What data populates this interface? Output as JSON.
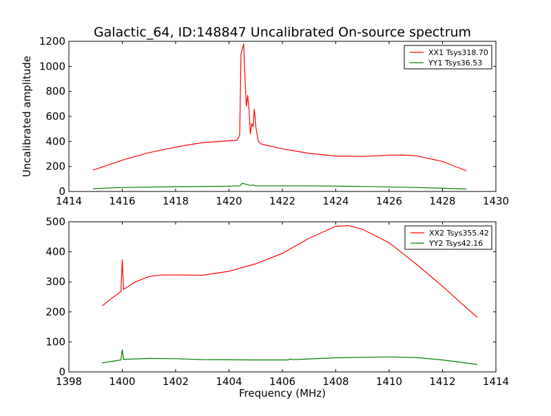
{
  "chart_data": [
    {
      "type": "line",
      "title": "Galactic_64, ID:148847 Uncalibrated On-source spectrum",
      "xlabel": "",
      "ylabel": "Uncalibrated amplitude",
      "xlim": [
        1414,
        1430
      ],
      "ylim": [
        0,
        1200
      ],
      "xticks": [
        1414,
        1416,
        1418,
        1420,
        1422,
        1424,
        1426,
        1428,
        1430
      ],
      "yticks": [
        0,
        200,
        400,
        600,
        800,
        1000,
        1200
      ],
      "legend_position": "top-right",
      "grid": false,
      "series": [
        {
          "name": "XX1 Tsys318.70",
          "color": "#ff0000",
          "x": [
            1414.9,
            1416,
            1417,
            1418,
            1419,
            1420,
            1420.3,
            1420.4,
            1420.45,
            1420.5,
            1420.55,
            1420.6,
            1420.65,
            1420.7,
            1420.75,
            1420.8,
            1420.85,
            1420.9,
            1420.95,
            1421.0,
            1421.1,
            1421.2,
            1422,
            1423,
            1424,
            1425,
            1426,
            1426.5,
            1427,
            1428,
            1428.9
          ],
          "y": [
            170,
            250,
            310,
            355,
            390,
            405,
            410,
            450,
            1100,
            1140,
            1180,
            900,
            680,
            770,
            650,
            460,
            540,
            520,
            660,
            520,
            400,
            380,
            340,
            305,
            283,
            280,
            290,
            292,
            285,
            240,
            165
          ]
        },
        {
          "name": "YY1 Tsys36.53",
          "color": "#008000",
          "x": [
            1414.9,
            1416,
            1418,
            1420,
            1420.4,
            1420.5,
            1420.6,
            1420.8,
            1420.9,
            1421,
            1423,
            1425,
            1427,
            1428.9
          ],
          "y": [
            22,
            32,
            38,
            42,
            45,
            65,
            60,
            48,
            52,
            45,
            45,
            40,
            32,
            20
          ]
        }
      ]
    },
    {
      "type": "line",
      "title": "",
      "xlabel": "Frequency (MHz)",
      "ylabel": "",
      "xlim": [
        1398,
        1414
      ],
      "ylim": [
        0,
        500
      ],
      "xticks": [
        1398,
        1400,
        1402,
        1404,
        1406,
        1408,
        1410,
        1412,
        1414
      ],
      "yticks": [
        0,
        100,
        200,
        300,
        400,
        500
      ],
      "legend_position": "top-right",
      "grid": false,
      "series": [
        {
          "name": "XX2 Tsys355.42",
          "color": "#ff0000",
          "x": [
            1399.25,
            1399.6,
            1399.95,
            1400.0,
            1400.05,
            1400.5,
            1401,
            1401.5,
            1402,
            1403,
            1404,
            1405,
            1406,
            1407,
            1408,
            1408.5,
            1409,
            1410,
            1411,
            1412,
            1413,
            1413.3
          ],
          "y": [
            220,
            245,
            268,
            375,
            275,
            300,
            318,
            323,
            323,
            322,
            335,
            360,
            395,
            445,
            485,
            487,
            475,
            430,
            360,
            285,
            205,
            182
          ]
        },
        {
          "name": "YY2 Tsys42.16",
          "color": "#008000",
          "x": [
            1399.25,
            1399.95,
            1400.0,
            1400.05,
            1401,
            1402,
            1403,
            1405,
            1406.2,
            1406.3,
            1406.4,
            1408,
            1410,
            1411,
            1412,
            1413.3
          ],
          "y": [
            30,
            40,
            75,
            42,
            45,
            44,
            41,
            40,
            40,
            43,
            41,
            47,
            50,
            48,
            40,
            25
          ]
        }
      ]
    }
  ]
}
